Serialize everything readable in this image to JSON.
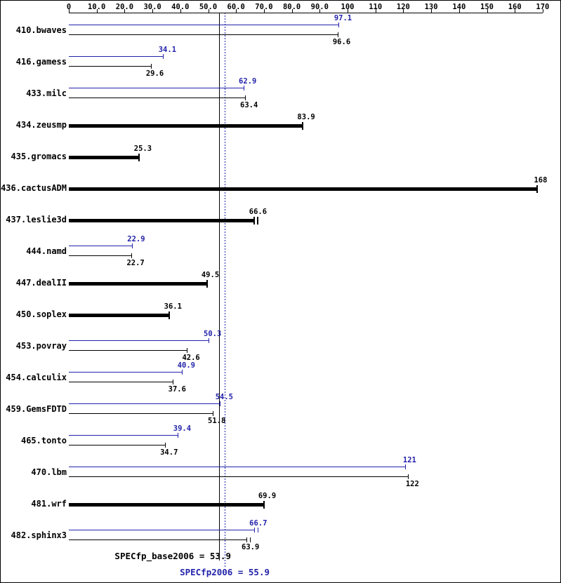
{
  "chart_data": {
    "type": "bar",
    "orientation": "horizontal",
    "xlim": [
      0,
      170
    ],
    "x_tick_values": [
      0,
      10,
      20,
      30,
      40,
      50,
      60,
      70,
      80,
      90,
      100,
      110,
      120,
      130,
      140,
      150,
      160,
      170
    ],
    "x_ticks": [
      "0",
      "10.0",
      "20.0",
      "30.0",
      "40.0",
      "50.0",
      "60.0",
      "70.0",
      "80.0",
      "90.0",
      "100",
      "110",
      "120",
      "130",
      "140",
      "150",
      "160",
      "170"
    ],
    "series": [
      {
        "name": "peak",
        "color": "#2222aa"
      },
      {
        "name": "base",
        "color": "#000000"
      }
    ],
    "benchmarks": [
      {
        "name": "410.bwaves",
        "peak": 97.1,
        "base": 96.6
      },
      {
        "name": "416.gamess",
        "peak": 34.1,
        "base": 29.6
      },
      {
        "name": "433.milc",
        "peak": 62.9,
        "base": 63.4
      },
      {
        "name": "434.zeusmp",
        "peak": null,
        "base": 83.9
      },
      {
        "name": "435.gromacs",
        "peak": null,
        "base": 25.3
      },
      {
        "name": "436.cactusADM",
        "peak": null,
        "base": 168
      },
      {
        "name": "437.leslie3d",
        "peak": null,
        "base": 66.6,
        "base_caps": 2
      },
      {
        "name": "444.namd",
        "peak": 22.9,
        "base": 22.7
      },
      {
        "name": "447.dealII",
        "peak": null,
        "base": 49.5
      },
      {
        "name": "450.soplex",
        "peak": null,
        "base": 36.1
      },
      {
        "name": "453.povray",
        "peak": 50.3,
        "base": 42.6
      },
      {
        "name": "454.calculix",
        "peak": 40.9,
        "base": 37.6
      },
      {
        "name": "459.GemsFDTD",
        "peak": 54.5,
        "base": 51.8
      },
      {
        "name": "465.tonto",
        "peak": 39.4,
        "base": 34.7
      },
      {
        "name": "470.lbm",
        "peak": 121,
        "base": 122
      },
      {
        "name": "481.wrf",
        "peak": null,
        "base": 69.9
      },
      {
        "name": "482.sphinx3",
        "peak": 66.7,
        "base": 63.9,
        "peak_caps": 2,
        "base_caps": 2
      }
    ],
    "reference_lines": [
      {
        "series": "base",
        "value": 53.9,
        "style": "solid",
        "color": "#000000"
      },
      {
        "series": "peak",
        "value": 55.9,
        "style": "dotted",
        "color": "#2222aa"
      }
    ],
    "footer": {
      "base_label": "SPECfp_base2006 = 53.9",
      "peak_label": "SPECfp2006 = 55.9"
    },
    "colors": {
      "peak": "#2222aa",
      "base": "#000000",
      "background": "#ffffff",
      "border": "#000000"
    }
  }
}
